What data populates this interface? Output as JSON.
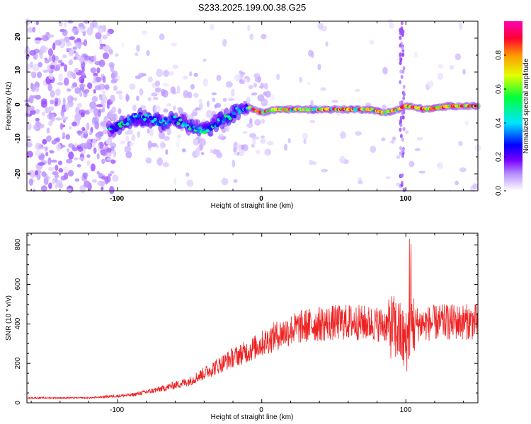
{
  "title": "S233.2025.199.00.38.G25",
  "chart_data": [
    {
      "type": "heatmap",
      "xlabel": "Height of straight line (km)",
      "ylabel": "Frequency (Hz)",
      "xlim": [
        -163,
        150
      ],
      "ylim": [
        -25,
        25
      ],
      "xticks": [
        "-100",
        "0",
        "100"
      ],
      "yticks": [
        "-20",
        "-10",
        "0",
        "10",
        "20"
      ],
      "grid": false,
      "colorbar": {
        "label": "Normalized spectral amplitude",
        "range": [
          0,
          1
        ],
        "ticks": [
          "0.0",
          "0.2",
          "0.4",
          "0.6",
          "0.8"
        ],
        "colors": [
          "#ffffff",
          "#b690ff",
          "#7a00ff",
          "#0000ff",
          "#00e6ff",
          "#00ff3c",
          "#e4ff00",
          "#ff9800",
          "#ff0033",
          "#ff00b4"
        ]
      },
      "ridge": [
        {
          "x": -105,
          "y": -7
        },
        {
          "x": -95,
          "y": -5
        },
        {
          "x": -85,
          "y": -3
        },
        {
          "x": -70,
          "y": -5
        },
        {
          "x": -60,
          "y": -4
        },
        {
          "x": -50,
          "y": -6
        },
        {
          "x": -38,
          "y": -7
        },
        {
          "x": -28,
          "y": -4
        },
        {
          "x": -18,
          "y": -2
        },
        {
          "x": -12,
          "y": 0
        },
        {
          "x": 0,
          "y": -2
        },
        {
          "x": 10,
          "y": -1
        },
        {
          "x": 25,
          "y": -1
        },
        {
          "x": 40,
          "y": -1
        },
        {
          "x": 55,
          "y": -1
        },
        {
          "x": 65,
          "y": -1
        },
        {
          "x": 75,
          "y": -1
        },
        {
          "x": 85,
          "y": -2
        },
        {
          "x": 95,
          "y": -1
        },
        {
          "x": 100,
          "y": 0
        },
        {
          "x": 115,
          "y": -1
        },
        {
          "x": 130,
          "y": 0
        },
        {
          "x": 150,
          "y": 0
        }
      ]
    },
    {
      "type": "line",
      "xlabel": "Height of straight line (km)",
      "ylabel": "SNR (10 * v/v)",
      "xlim": [
        -163,
        150
      ],
      "ylim": [
        0,
        860
      ],
      "xticks": [
        "-100",
        "0",
        "100"
      ],
      "yticks": [
        "0",
        "200",
        "400",
        "600",
        "800"
      ],
      "grid": false,
      "color": "#ee2222",
      "envelope": [
        {
          "x": -163,
          "y": 25
        },
        {
          "x": -120,
          "y": 25
        },
        {
          "x": -110,
          "y": 30
        },
        {
          "x": -90,
          "y": 40
        },
        {
          "x": -70,
          "y": 70
        },
        {
          "x": -50,
          "y": 110
        },
        {
          "x": -40,
          "y": 150
        },
        {
          "x": -30,
          "y": 190
        },
        {
          "x": -20,
          "y": 230
        },
        {
          "x": -10,
          "y": 260
        },
        {
          "x": 0,
          "y": 300
        },
        {
          "x": 10,
          "y": 340
        },
        {
          "x": 20,
          "y": 370
        },
        {
          "x": 30,
          "y": 390
        },
        {
          "x": 40,
          "y": 400
        },
        {
          "x": 60,
          "y": 410
        },
        {
          "x": 80,
          "y": 400
        },
        {
          "x": 90,
          "y": 390
        },
        {
          "x": 95,
          "y": 360
        },
        {
          "x": 100,
          "y": 300
        },
        {
          "x": 103,
          "y": 400
        },
        {
          "x": 110,
          "y": 400
        },
        {
          "x": 130,
          "y": 410
        },
        {
          "x": 150,
          "y": 410
        }
      ]
    }
  ]
}
